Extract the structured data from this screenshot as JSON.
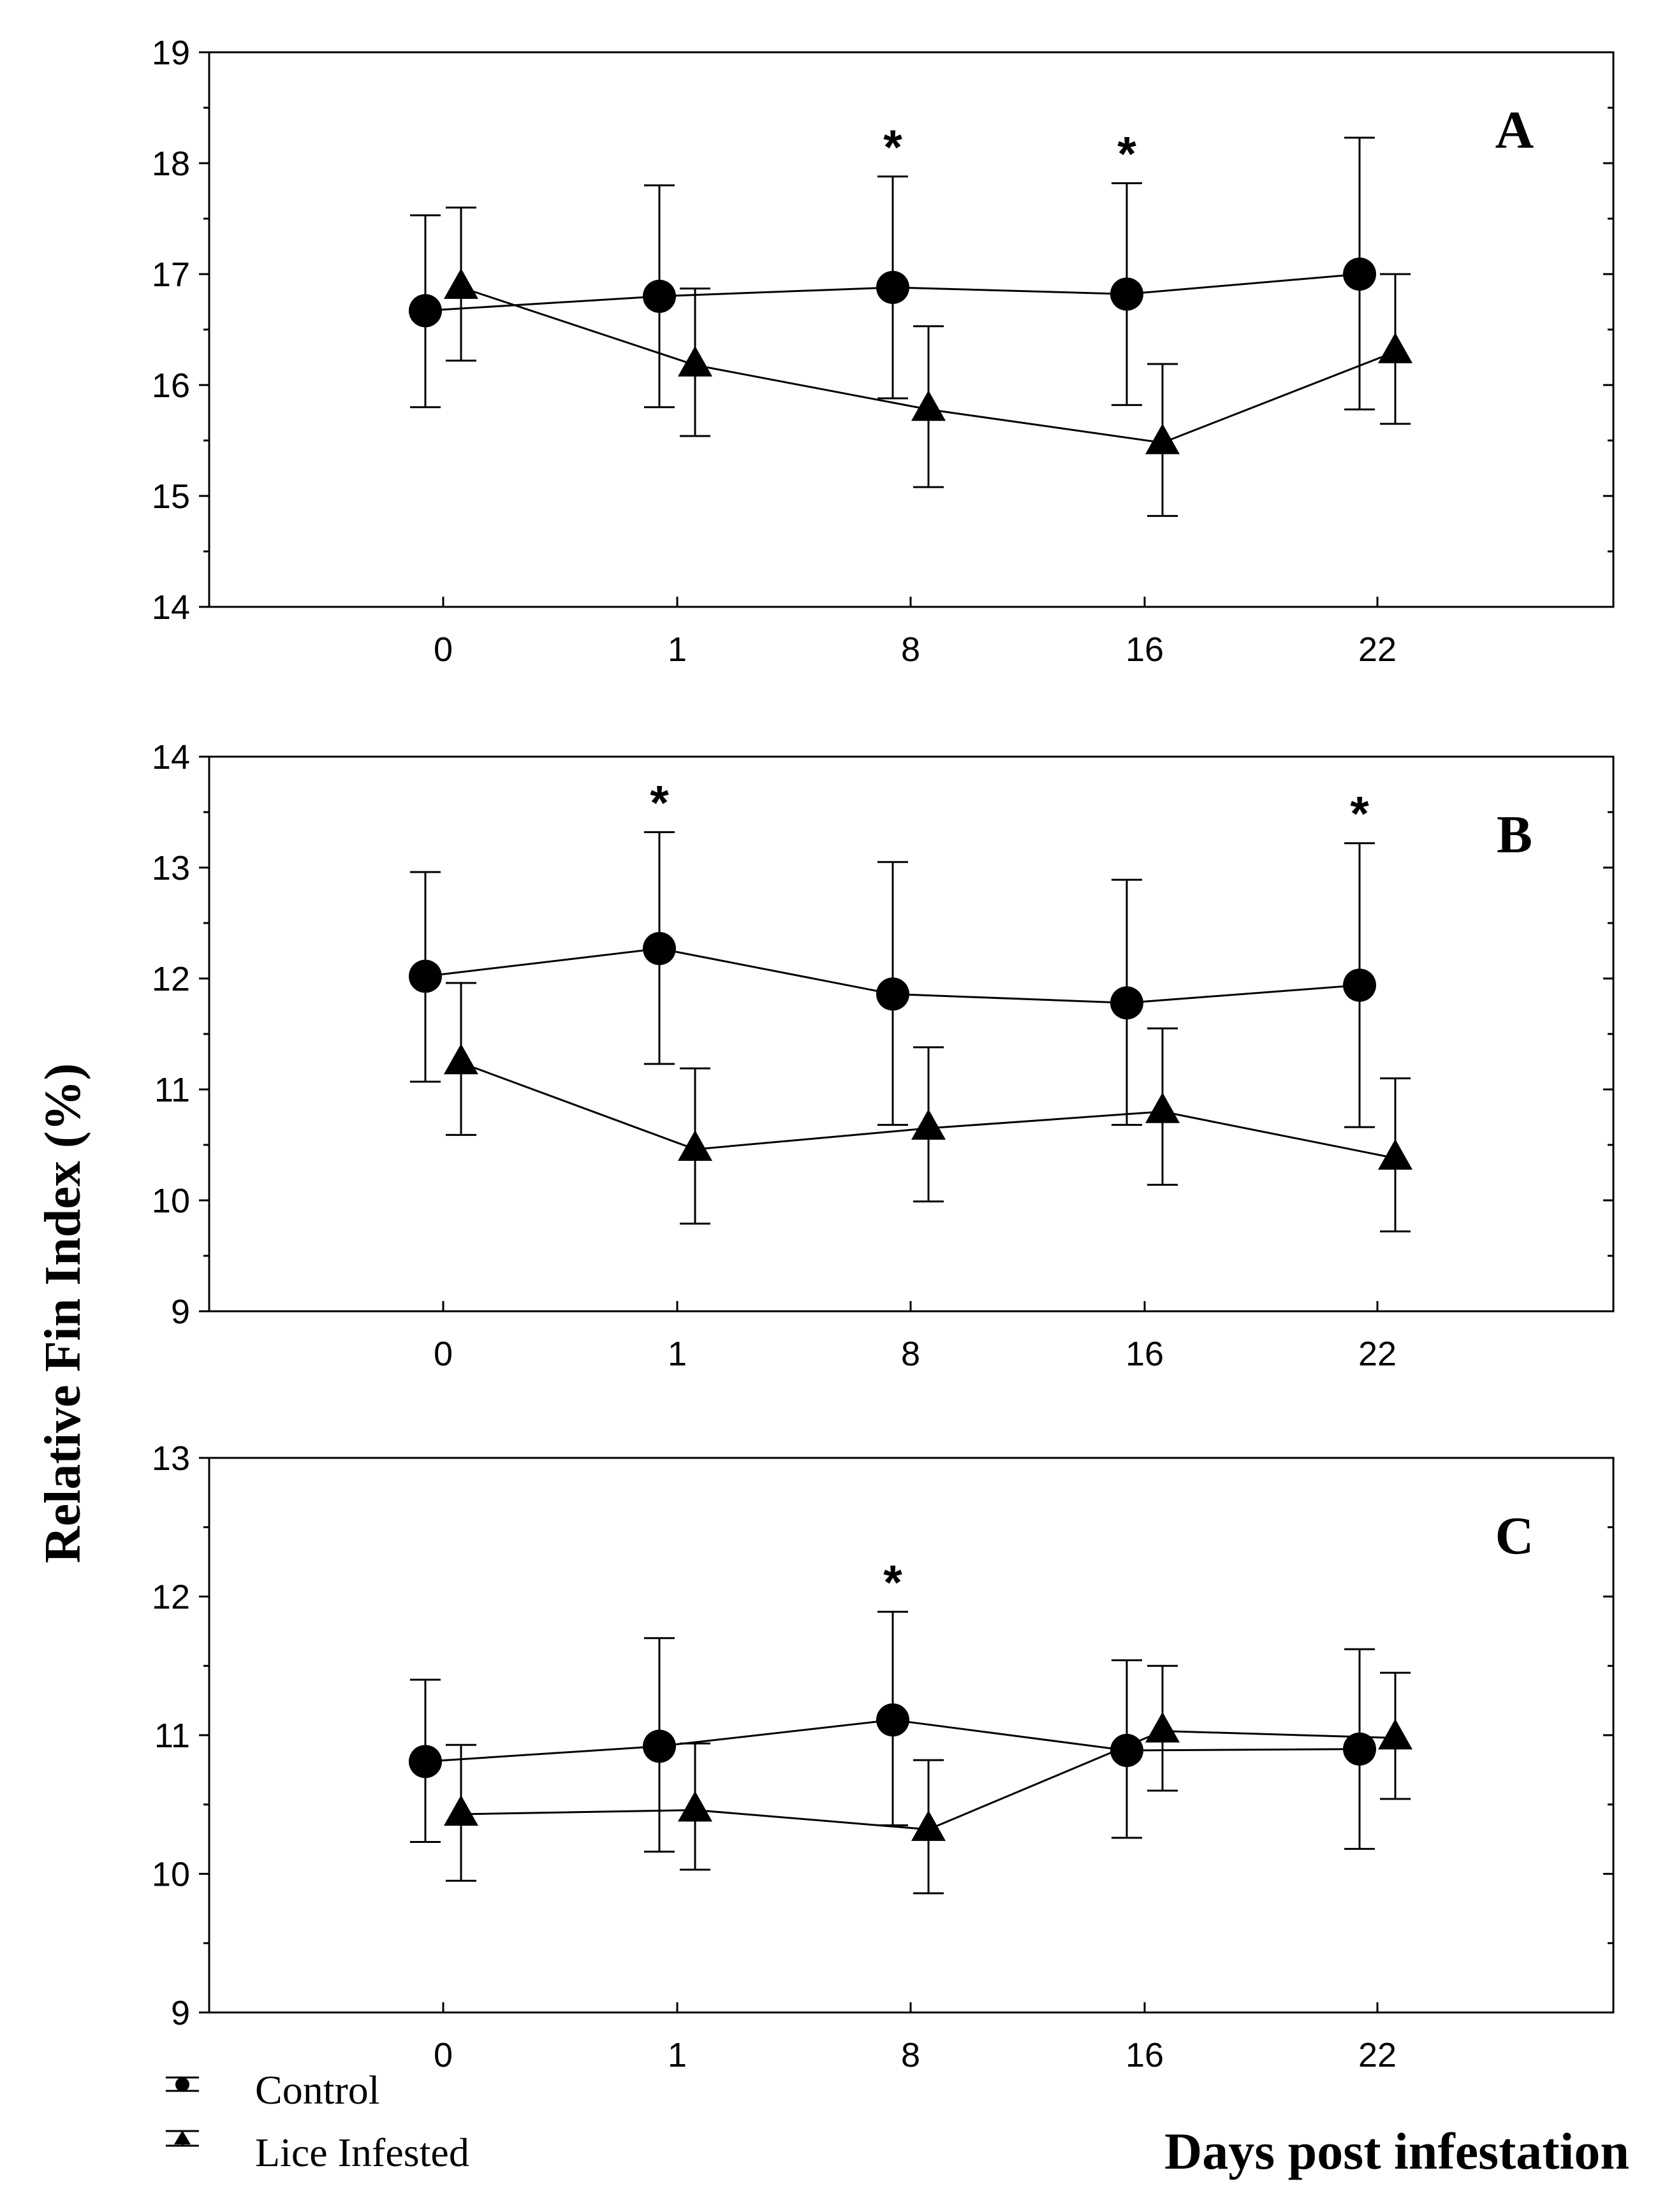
{
  "chart_data": [
    {
      "type": "line",
      "panel": "A",
      "categories": [
        "0",
        "1",
        "8",
        "16",
        "22"
      ],
      "ylim": [
        14,
        19
      ],
      "yticks": [
        14,
        15,
        16,
        17,
        18,
        19
      ],
      "series": [
        {
          "name": "Control",
          "marker": "circle",
          "values": [
            16.67,
            16.8,
            16.88,
            16.82,
            17.0
          ],
          "err_low": [
            15.8,
            15.8,
            15.88,
            15.82,
            15.78
          ],
          "err_high": [
            17.53,
            17.8,
            17.88,
            17.82,
            18.23
          ]
        },
        {
          "name": "Lice Infested",
          "marker": "triangle",
          "values": [
            16.88,
            16.18,
            15.78,
            15.48,
            16.3
          ],
          "err_low": [
            16.22,
            15.54,
            15.08,
            14.82,
            15.65
          ],
          "err_high": [
            17.6,
            16.87,
            16.53,
            16.19,
            17.0
          ]
        }
      ],
      "significant": [
        "8",
        "16"
      ]
    },
    {
      "type": "line",
      "panel": "B",
      "categories": [
        "0",
        "1",
        "8",
        "16",
        "22"
      ],
      "ylim": [
        9,
        14
      ],
      "yticks": [
        9,
        10,
        11,
        12,
        13,
        14
      ],
      "series": [
        {
          "name": "Control",
          "marker": "circle",
          "values": [
            12.02,
            12.27,
            11.86,
            11.78,
            11.94
          ],
          "err_low": [
            11.07,
            11.23,
            10.68,
            10.68,
            10.66
          ],
          "err_high": [
            12.96,
            13.32,
            13.05,
            12.89,
            13.22
          ]
        },
        {
          "name": "Lice Infested",
          "marker": "triangle",
          "values": [
            11.24,
            10.46,
            10.65,
            10.8,
            10.38
          ],
          "err_low": [
            10.59,
            9.79,
            9.99,
            10.14,
            9.72
          ],
          "err_high": [
            11.96,
            11.19,
            11.38,
            11.55,
            11.1
          ]
        }
      ],
      "significant": [
        "1",
        "22"
      ]
    },
    {
      "type": "line",
      "panel": "C",
      "categories": [
        "0",
        "1",
        "8",
        "16",
        "22"
      ],
      "ylim": [
        9,
        13
      ],
      "yticks": [
        9,
        10,
        11,
        12,
        13
      ],
      "series": [
        {
          "name": "Control",
          "marker": "circle",
          "values": [
            10.81,
            10.92,
            11.11,
            10.89,
            10.9
          ],
          "err_low": [
            10.23,
            10.16,
            10.35,
            10.26,
            10.18
          ],
          "err_high": [
            11.4,
            11.7,
            11.89,
            11.54,
            11.62
          ]
        },
        {
          "name": "Lice Infested",
          "marker": "triangle",
          "values": [
            10.43,
            10.46,
            10.32,
            11.03,
            10.98
          ],
          "err_low": [
            9.95,
            10.03,
            9.86,
            10.6,
            10.54
          ],
          "err_high": [
            10.93,
            10.94,
            10.82,
            11.5,
            11.45
          ]
        }
      ],
      "significant": [
        "8"
      ]
    }
  ],
  "ylabel": "Relative Fin Index (%)",
  "xlabel": "Days post infestation",
  "legend": {
    "items": [
      "Control",
      "Lice Infested"
    ],
    "position": "bottom-left"
  },
  "significance_symbol": "*"
}
